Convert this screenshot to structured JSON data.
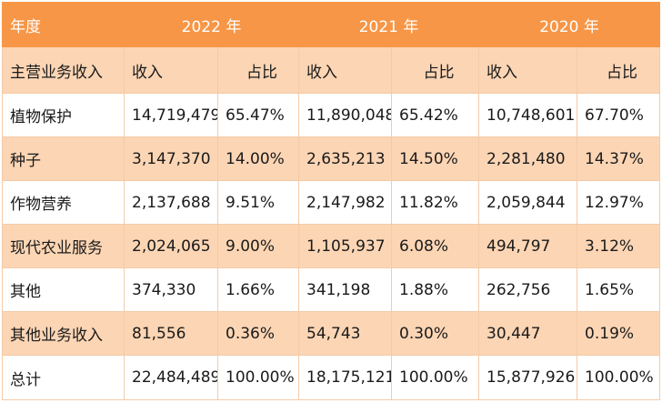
{
  "table": {
    "header_label": "年度",
    "years": [
      "2022 年",
      "2021 年",
      "2020 年"
    ],
    "subheader": {
      "category_label": "主营业务收入",
      "columns": [
        "收入",
        "占比",
        "收入",
        "占比",
        "收入",
        "占比"
      ]
    },
    "rows": [
      {
        "label": "植物保护",
        "cells": [
          "14,719,479",
          "65.47%",
          "11,890,048",
          "65.42%",
          "10,748,601",
          "67.70%"
        ]
      },
      {
        "label": "种子",
        "cells": [
          "3,147,370",
          "14.00%",
          "2,635,213",
          "14.50%",
          "2,281,480",
          "14.37%"
        ]
      },
      {
        "label": "作物营养",
        "cells": [
          "2,137,688",
          "9.51%",
          "2,147,982",
          "11.82%",
          "2,059,844",
          "12.97%"
        ]
      },
      {
        "label": "现代农业服务",
        "cells": [
          "2,024,065",
          "9.00%",
          "1,105,937",
          "6.08%",
          "494,797",
          "3.12%"
        ]
      },
      {
        "label": "其他",
        "cells": [
          "374,330",
          "1.66%",
          "341,198",
          "1.88%",
          "262,756",
          "1.65%"
        ]
      },
      {
        "label": "其他业务收入",
        "cells": [
          "81,556",
          "0.36%",
          "54,743",
          "0.30%",
          "30,447",
          "0.19%"
        ]
      }
    ],
    "total": {
      "label": "总计",
      "cells": [
        "22,484,489",
        "100.00%",
        "18,175,121",
        "100.00%",
        "15,877,926",
        "100.00%"
      ]
    }
  },
  "colors": {
    "header_bg": "#f79646",
    "band_bg": "#fcd5b4",
    "plain_bg": "#ffffff"
  }
}
